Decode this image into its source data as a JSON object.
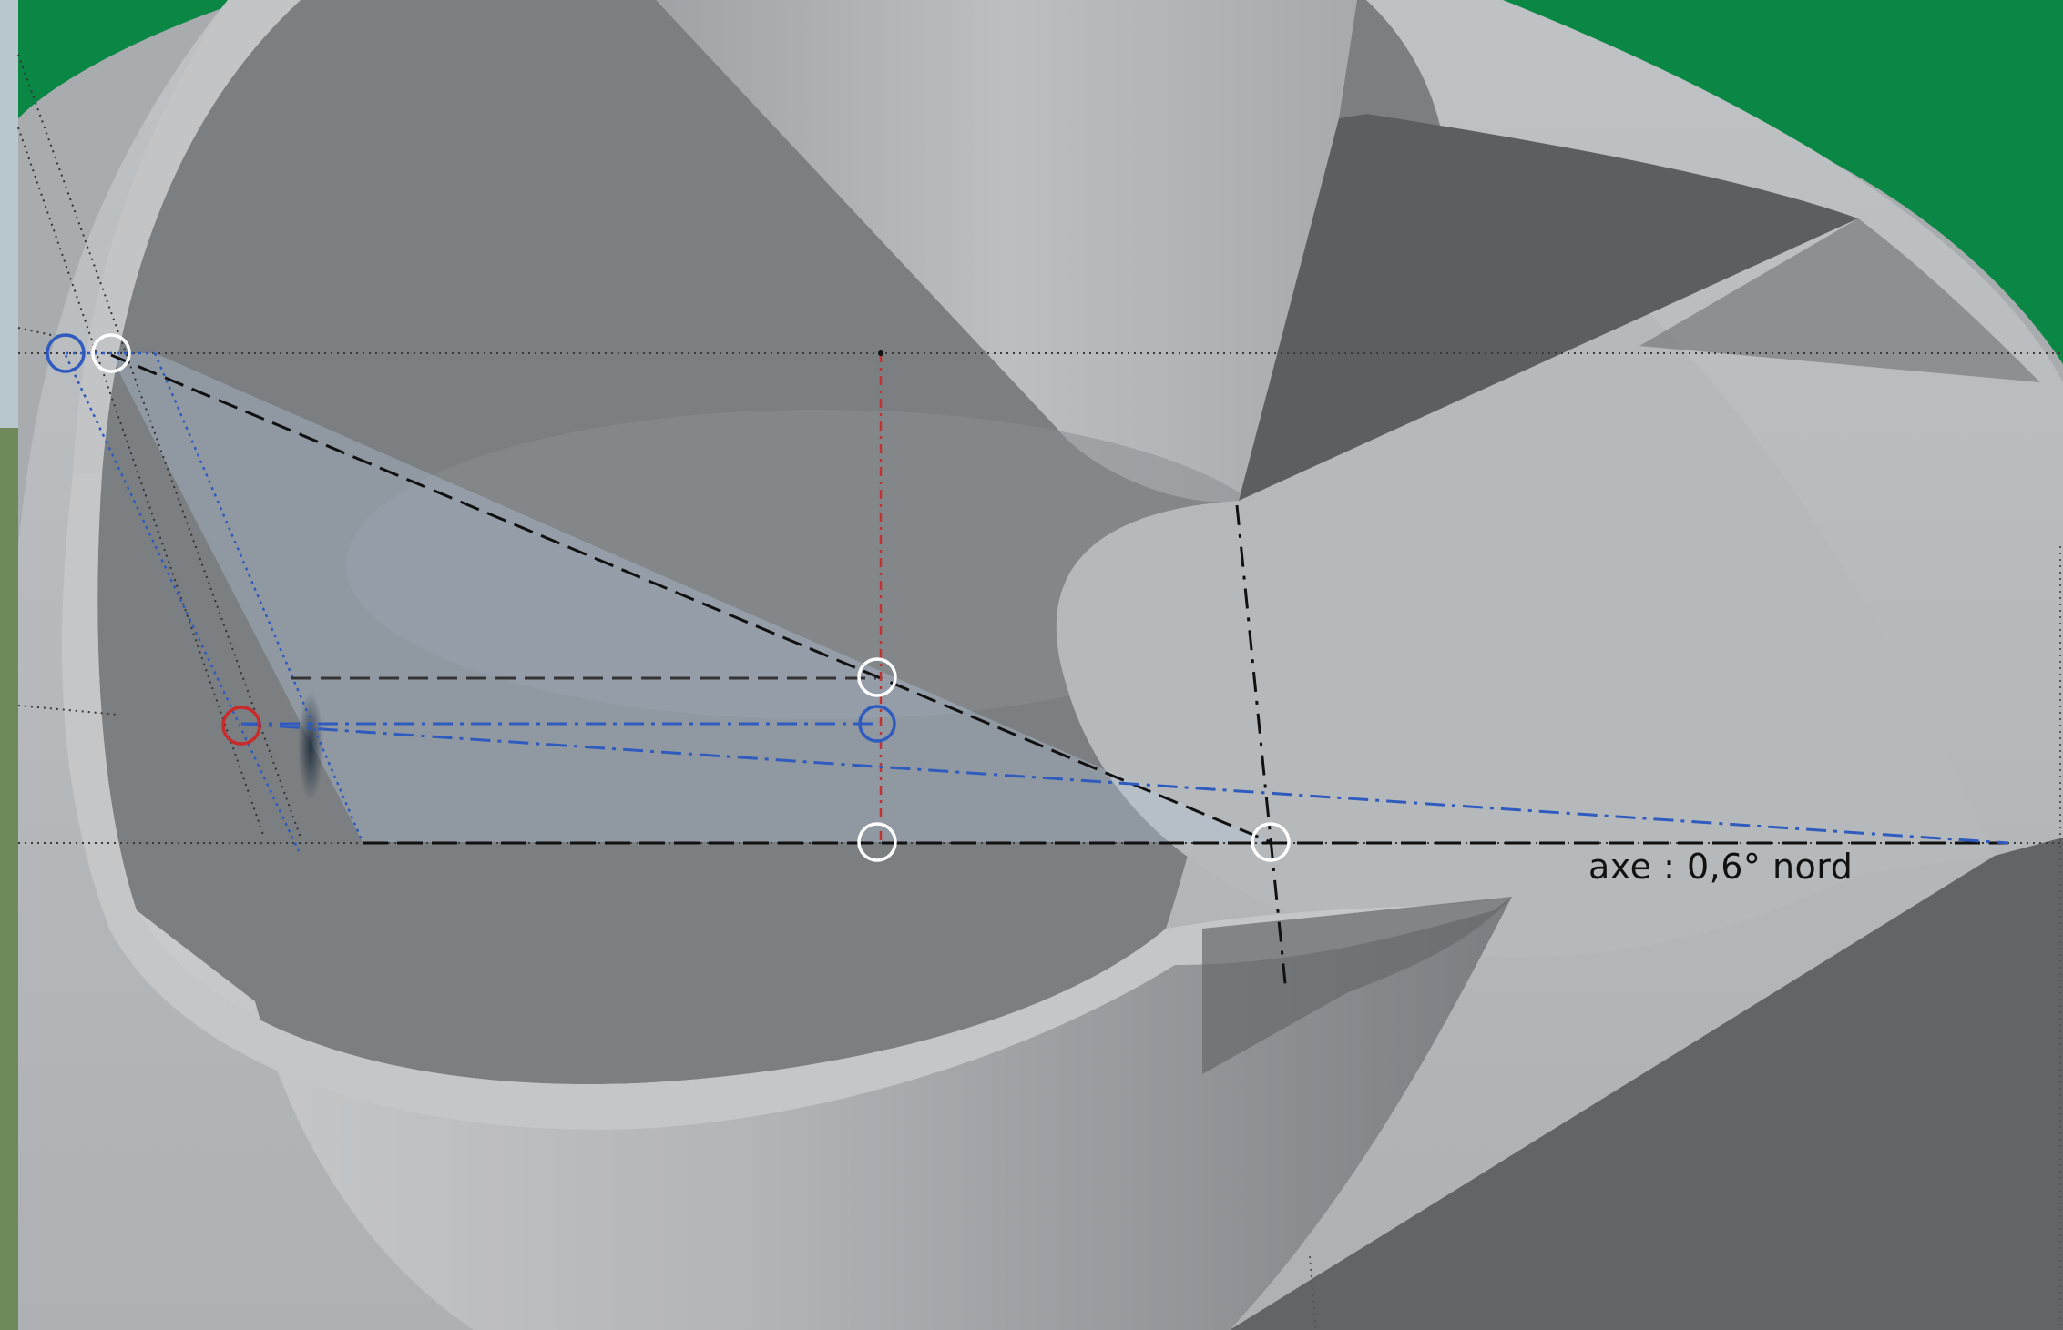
{
  "annotation": {
    "axis_label": "axe : 0,6° nord"
  },
  "colors": {
    "grass_green": "#0a8744",
    "concrete_light": "#b4b7ba",
    "concrete_mid": "#7c8083",
    "concrete_dark": "#55595c",
    "construction_line_black": "#111111",
    "construction_line_blue": "#2f5bbf",
    "construction_line_red": "#c23434",
    "marker_white": "#ffffff",
    "marker_blue": "#2f5bbf",
    "marker_red": "#c92a2a"
  },
  "markers": [
    {
      "name": "marker-white-top-left",
      "color": "white"
    },
    {
      "name": "marker-blue-top-left",
      "color": "blue"
    },
    {
      "name": "marker-red-left",
      "color": "red"
    },
    {
      "name": "marker-white-center-upper",
      "color": "white"
    },
    {
      "name": "marker-blue-center",
      "color": "blue"
    },
    {
      "name": "marker-white-center-lower",
      "color": "white"
    },
    {
      "name": "marker-white-right",
      "color": "white"
    }
  ]
}
